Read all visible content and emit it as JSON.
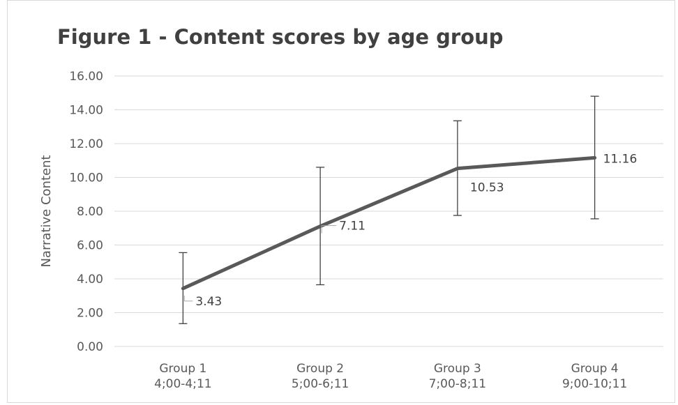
{
  "chart_data": {
    "type": "line",
    "title": "Figure 1 - Content scores by age group",
    "xlabel": "",
    "ylabel": "Narrative Content",
    "ylim": [
      0,
      16
    ],
    "ytick_labels": [
      "0.00",
      "2.00",
      "4.00",
      "6.00",
      "8.00",
      "10.00",
      "12.00",
      "14.00",
      "16.00"
    ],
    "categories": [
      [
        "Group 1",
        "4;00-4;11"
      ],
      [
        "Group 2",
        "5;00-6;11"
      ],
      [
        "Group 3",
        "7;00-8;11"
      ],
      [
        "Group 4",
        "9;00-10;11"
      ]
    ],
    "series": [
      {
        "values": [
          3.43,
          7.11,
          10.53,
          11.16
        ],
        "data_labels": [
          "3.43",
          "7.11",
          "10.53",
          "11.16"
        ],
        "error_low": [
          1.35,
          3.65,
          7.75,
          7.55
        ],
        "error_high": [
          5.55,
          10.6,
          13.35,
          14.8
        ],
        "color": "#595959"
      }
    ],
    "grid": true,
    "legend": "none",
    "colors": {
      "line": "#595959",
      "grid": "#d9d9d9",
      "error_bar": "#404040",
      "text": "#595959"
    }
  }
}
